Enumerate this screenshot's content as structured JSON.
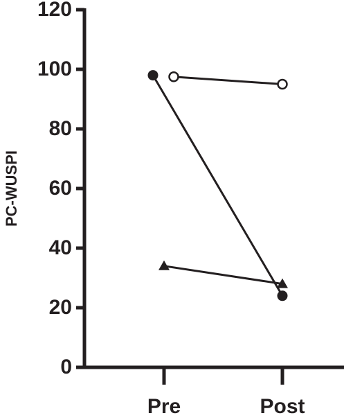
{
  "chart_data": {
    "type": "line",
    "y_label": "PC-WUSPI",
    "categories": [
      "Pre",
      "Post"
    ],
    "series": [
      {
        "color": "#231f20",
        "marker": "circle-filled",
        "values": [
          98,
          24
        ]
      },
      {
        "color": "#231f20",
        "marker": "circle-open",
        "values": [
          97.5,
          95
        ]
      },
      {
        "color": "#231f20",
        "marker": "triangle",
        "values": [
          34,
          28
        ]
      }
    ],
    "ylim": [
      0,
      120
    ],
    "yticks": [
      0,
      20,
      40,
      60,
      80,
      100,
      120
    ],
    "grid": false
  }
}
